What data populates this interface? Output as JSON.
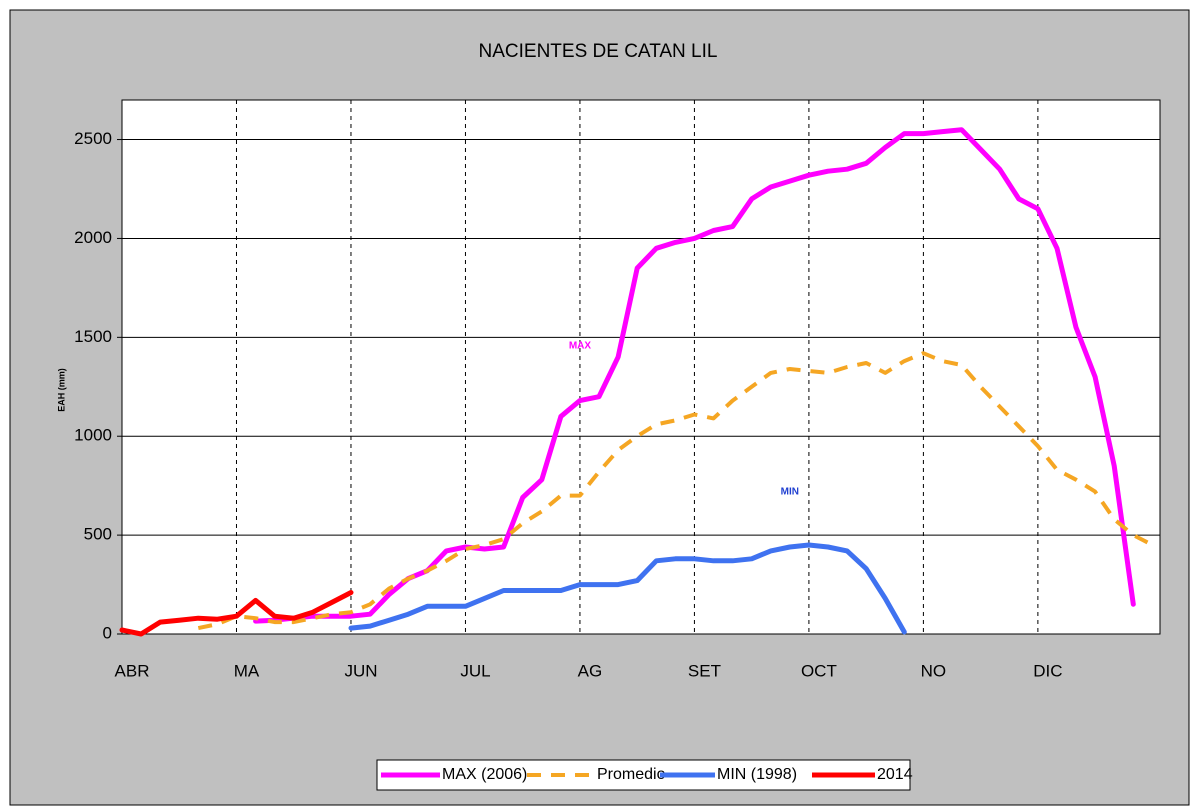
{
  "chart_data": {
    "type": "line",
    "title": "NACIENTES DE CATAN LIL",
    "y_label": "EAH (mm)",
    "categories": [
      "ABR",
      null,
      null,
      null,
      null,
      null,
      "MA",
      null,
      null,
      null,
      null,
      null,
      "JUN",
      null,
      null,
      null,
      null,
      null,
      "JUL",
      null,
      null,
      null,
      null,
      null,
      "AG",
      null,
      null,
      null,
      null,
      null,
      "SET",
      null,
      null,
      null,
      null,
      null,
      "OCT",
      null,
      null,
      null,
      null,
      null,
      "NO",
      null,
      null,
      null,
      null,
      null,
      "DIC",
      null,
      null,
      null,
      null,
      null,
      null
    ],
    "series": [
      {
        "name": "MAX (2006)",
        "color": "#ff00ff",
        "dash": false,
        "values": [
          null,
          null,
          null,
          null,
          null,
          null,
          null,
          65,
          70,
          80,
          90,
          90,
          90,
          100,
          200,
          280,
          320,
          420,
          440,
          430,
          440,
          690,
          780,
          1100,
          1180,
          1200,
          1400,
          1850,
          1950,
          1980,
          2000,
          2040,
          2060,
          2200,
          2260,
          2290,
          2320,
          2340,
          2350,
          2380,
          2460,
          2530,
          2530,
          2540,
          2550,
          2450,
          2350,
          2200,
          2150,
          1950,
          1550,
          1300,
          850,
          150,
          null
        ]
      },
      {
        "name": "Promedio",
        "color": "#f5a623",
        "dash": true,
        "values": [
          null,
          null,
          null,
          null,
          30,
          50,
          90,
          80,
          60,
          60,
          80,
          100,
          110,
          150,
          230,
          280,
          320,
          370,
          430,
          450,
          480,
          560,
          620,
          700,
          700,
          820,
          930,
          1000,
          1060,
          1080,
          1110,
          1090,
          1180,
          1250,
          1320,
          1340,
          1330,
          1320,
          1350,
          1370,
          1320,
          1380,
          1420,
          1380,
          1360,
          1250,
          1150,
          1050,
          950,
          830,
          780,
          720,
          580,
          500,
          450
        ]
      },
      {
        "name": "MIN (1998)",
        "color": "#3f72f0",
        "dash": false,
        "values": [
          null,
          null,
          null,
          null,
          null,
          null,
          null,
          null,
          null,
          null,
          null,
          null,
          30,
          40,
          70,
          100,
          140,
          140,
          140,
          180,
          220,
          220,
          220,
          220,
          250,
          250,
          250,
          270,
          370,
          380,
          380,
          370,
          370,
          380,
          420,
          440,
          450,
          440,
          420,
          330,
          180,
          10,
          null,
          null,
          null,
          null,
          null,
          null,
          null,
          null,
          null,
          null,
          null,
          null,
          null
        ]
      },
      {
        "name": "2014",
        "color": "#ff0000",
        "dash": false,
        "values": [
          20,
          0,
          60,
          70,
          80,
          75,
          90,
          170,
          90,
          80,
          110,
          160,
          210,
          null,
          null,
          null,
          null,
          null,
          null,
          null,
          null,
          null,
          null,
          null,
          null,
          null,
          null,
          null,
          null,
          null,
          null,
          null,
          null,
          null,
          null,
          null,
          null,
          null,
          null,
          null,
          null,
          null,
          null,
          null,
          null,
          null,
          null,
          null,
          null,
          null,
          null,
          null,
          null,
          null,
          null
        ]
      }
    ],
    "annotations": [
      {
        "text": "MAX",
        "color": "#ff00ff",
        "series": 0,
        "index": 24
      },
      {
        "text": "MIN",
        "color": "#1f3fd0",
        "series": 2,
        "index": 35
      }
    ],
    "ylim": [
      0,
      2700
    ],
    "yticks": [
      0,
      500,
      1000,
      1500,
      2000,
      2500
    ],
    "grid": true,
    "legend": "bottom"
  }
}
